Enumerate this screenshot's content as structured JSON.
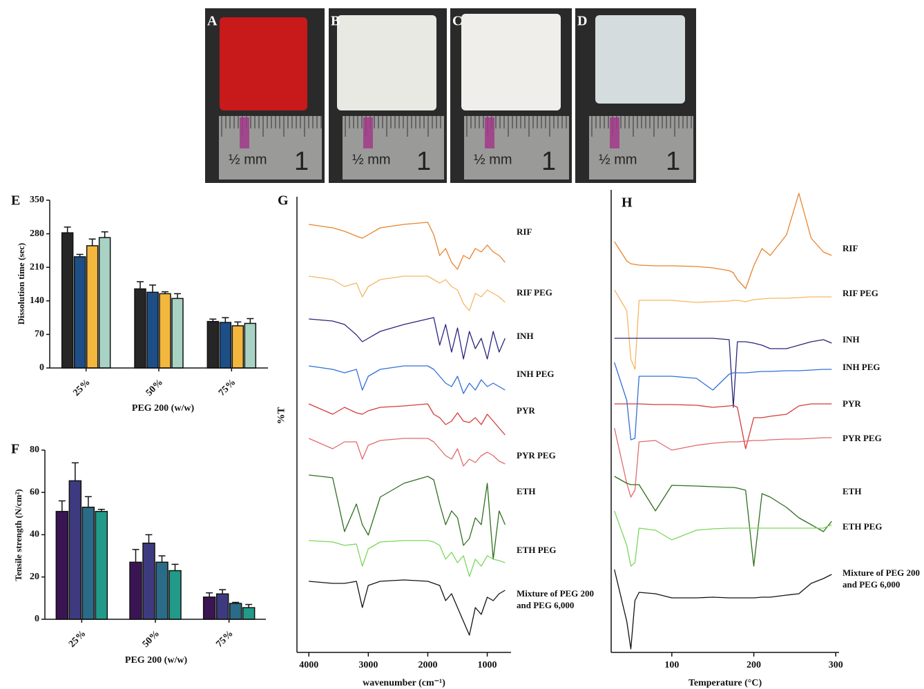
{
  "photo_panels": [
    {
      "label": "A",
      "ruler_text": "½ mm",
      "ruler_number": "1"
    },
    {
      "label": "B",
      "ruler_text": "½ mm",
      "ruler_number": "1"
    },
    {
      "label": "C",
      "ruler_text": "½ mm",
      "ruler_number": "1"
    },
    {
      "label": "D",
      "ruler_text": "½ mm",
      "ruler_number": "1"
    }
  ],
  "chart_data": [
    {
      "type": "bar",
      "panel_label": "E",
      "ylabel": "Dissolution time (sec)",
      "xlabel": "PEG 200 (w/w)",
      "categories": [
        "25%",
        "50%",
        "75%"
      ],
      "ylim": [
        0,
        350
      ],
      "yticks": [
        0,
        70,
        140,
        210,
        280,
        350
      ],
      "series": [
        {
          "color": "#262626",
          "values": [
            282,
            165,
            97
          ],
          "errors": [
            12,
            15,
            5
          ]
        },
        {
          "color": "#1d4f86",
          "values": [
            232,
            158,
            95
          ],
          "errors": [
            5,
            15,
            10
          ]
        },
        {
          "color": "#f4b73d",
          "values": [
            255,
            155,
            88
          ],
          "errors": [
            14,
            4,
            8
          ]
        },
        {
          "color": "#a8d2c3",
          "values": [
            272,
            145,
            93
          ],
          "errors": [
            12,
            10,
            10
          ]
        }
      ]
    },
    {
      "type": "bar",
      "panel_label": "F",
      "ylabel": "Tensile strength (N/cm²)",
      "xlabel": "PEG 200 (w/w)",
      "categories": [
        "25%",
        "50%",
        "75%"
      ],
      "ylim": [
        0,
        80
      ],
      "yticks": [
        0,
        20,
        40,
        60,
        80
      ],
      "series": [
        {
          "color": "#3b1553",
          "values": [
            51,
            27,
            10.5
          ],
          "errors": [
            5,
            6,
            2
          ]
        },
        {
          "color": "#3e3a80",
          "values": [
            65.5,
            36,
            12
          ],
          "errors": [
            8.5,
            4,
            2
          ]
        },
        {
          "color": "#2a6b87",
          "values": [
            53,
            27,
            7.5
          ],
          "errors": [
            5,
            3,
            0.5
          ]
        },
        {
          "color": "#229a89",
          "values": [
            51,
            23,
            5.5
          ],
          "errors": [
            1,
            3,
            1.5
          ]
        }
      ]
    },
    {
      "type": "line",
      "panel_label": "G",
      "ylabel": "%T",
      "xlabel": "wavenumber (cm⁻¹)",
      "xlim": [
        4200,
        600
      ],
      "xticks": [
        4000,
        3000,
        2000,
        1000
      ],
      "ylim": [
        0,
        660
      ],
      "x": [
        4000,
        3600,
        3400,
        3200,
        3100,
        3000,
        2800,
        2400,
        2000,
        1900,
        1800,
        1700,
        1600,
        1500,
        1400,
        1300,
        1200,
        1100,
        1000,
        900,
        800,
        700
      ],
      "series": [
        {
          "name": "RIF",
          "color": "#e8822c",
          "values": [
            620,
            615,
            610,
            603,
            600,
            605,
            615,
            620,
            623,
            605,
            575,
            585,
            565,
            555,
            575,
            570,
            585,
            580,
            590,
            580,
            575,
            565
          ]
        },
        {
          "name": "RIF PEG",
          "color": "#f5b660",
          "values": [
            545,
            540,
            530,
            535,
            515,
            530,
            540,
            545,
            545,
            540,
            535,
            540,
            530,
            525,
            505,
            495,
            520,
            515,
            525,
            520,
            515,
            507
          ]
        },
        {
          "name": "INH",
          "color": "#27247a",
          "values": [
            483,
            480,
            475,
            460,
            450,
            455,
            465,
            475,
            483,
            485,
            445,
            475,
            435,
            470,
            425,
            465,
            440,
            455,
            425,
            465,
            435,
            455
          ]
        },
        {
          "name": "INH PEG",
          "color": "#2f6fd6",
          "values": [
            415,
            410,
            405,
            410,
            380,
            400,
            410,
            415,
            415,
            410,
            400,
            390,
            385,
            400,
            375,
            390,
            380,
            395,
            385,
            390,
            385,
            380
          ]
        },
        {
          "name": "PYR",
          "color": "#d43a3a",
          "values": [
            360,
            345,
            355,
            347,
            345,
            350,
            355,
            357,
            360,
            345,
            340,
            330,
            335,
            347,
            335,
            333,
            340,
            330,
            345,
            335,
            325,
            315
          ]
        },
        {
          "name": "PYR PEG",
          "color": "#e06a6a",
          "values": [
            310,
            295,
            305,
            305,
            280,
            300,
            307,
            310,
            310,
            305,
            295,
            285,
            280,
            295,
            270,
            280,
            275,
            285,
            290,
            285,
            277,
            273
          ]
        },
        {
          "name": "ETH",
          "color": "#2e6e1e",
          "values": [
            257,
            253,
            175,
            215,
            185,
            170,
            225,
            245,
            255,
            250,
            215,
            185,
            205,
            195,
            155,
            165,
            195,
            185,
            245,
            135,
            205,
            185
          ]
        },
        {
          "name": "ETH PEG",
          "color": "#7bd65a",
          "values": [
            162,
            160,
            155,
            157,
            125,
            150,
            160,
            162,
            162,
            160,
            155,
            135,
            145,
            130,
            140,
            110,
            135,
            125,
            140,
            135,
            133,
            130
          ]
        },
        {
          "name": "Mixture of PEG 200 and PEG 6,000",
          "color": "#111111",
          "values": [
            103,
            100,
            100,
            103,
            65,
            97,
            103,
            105,
            103,
            100,
            97,
            75,
            85,
            65,
            45,
            25,
            65,
            55,
            80,
            75,
            85,
            90
          ]
        }
      ]
    },
    {
      "type": "line",
      "panel_label": "H",
      "xlabel": "Temperature (°C)",
      "xlim": [
        26,
        304
      ],
      "xticks": [
        100,
        200,
        300
      ],
      "ylim": [
        0,
        670
      ],
      "x": [
        30,
        45,
        50,
        55,
        60,
        80,
        100,
        130,
        150,
        170,
        175,
        180,
        190,
        200,
        210,
        220,
        240,
        255,
        270,
        285,
        295
      ],
      "series": [
        {
          "name": "RIF",
          "color": "#e8822c",
          "values": [
            595,
            567,
            563,
            562,
            561,
            560,
            560,
            559,
            557,
            553,
            550,
            540,
            527,
            560,
            585,
            575,
            605,
            665,
            600,
            580,
            575
          ]
        },
        {
          "name": "RIF PEG",
          "color": "#f5b660",
          "values": [
            525,
            495,
            425,
            410,
            510,
            510,
            510,
            507,
            508,
            509,
            510,
            510,
            508,
            511,
            512,
            513,
            513,
            514,
            515,
            515,
            515
          ]
        },
        {
          "name": "INH",
          "color": "#27247a",
          "values": [
            455,
            455,
            455,
            455,
            455,
            455,
            455,
            455,
            455,
            453,
            355,
            450,
            450,
            448,
            445,
            440,
            440,
            445,
            450,
            453,
            448
          ]
        },
        {
          "name": "INH PEG",
          "color": "#2f6fd6",
          "values": [
            420,
            365,
            308,
            310,
            400,
            400,
            400,
            397,
            380,
            403,
            405,
            405,
            405,
            406,
            407,
            407,
            408,
            408,
            409,
            410,
            410
          ]
        },
        {
          "name": "PYR",
          "color": "#d43a3a",
          "values": [
            360,
            360,
            360,
            360,
            360,
            359,
            359,
            358,
            355,
            357,
            358,
            355,
            295,
            340,
            340,
            342,
            345,
            357,
            360,
            360,
            360
          ]
        },
        {
          "name": "PYR PEG",
          "color": "#e06a6a",
          "values": [
            325,
            245,
            225,
            235,
            305,
            307,
            293,
            300,
            303,
            305,
            305,
            305,
            306,
            307,
            307,
            308,
            309,
            309,
            310,
            311,
            311
          ]
        },
        {
          "name": "ETH",
          "color": "#2e6e1e",
          "values": [
            255,
            245,
            243,
            243,
            243,
            205,
            242,
            241,
            240,
            239,
            239,
            238,
            235,
            125,
            230,
            225,
            210,
            195,
            185,
            175,
            190
          ]
        },
        {
          "name": "ETH PEG",
          "color": "#7bd65a",
          "values": [
            205,
            155,
            125,
            130,
            180,
            177,
            163,
            177,
            179,
            180,
            180,
            180,
            180,
            180,
            180,
            180,
            180,
            180,
            180,
            180,
            185
          ]
        },
        {
          "name": "Mixture of PEG 200 and PEG 6,000",
          "color": "#111111",
          "values": [
            120,
            45,
            5,
            75,
            87,
            85,
            79,
            79,
            80,
            79,
            79,
            79,
            79,
            79,
            80,
            80,
            83,
            85,
            100,
            107,
            113
          ]
        }
      ]
    }
  ]
}
